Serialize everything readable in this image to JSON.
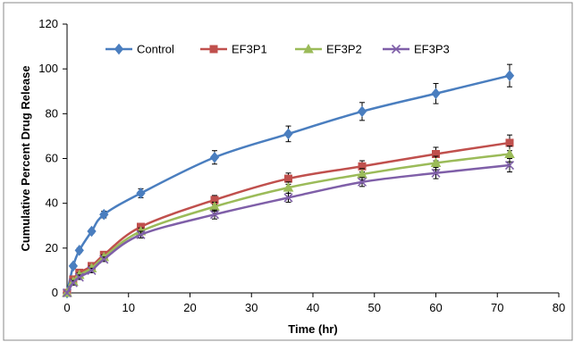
{
  "chart_data": {
    "type": "line",
    "title": "",
    "xlabel": "Time (hr)",
    "ylabel": "Cumulative Percent Drug Release",
    "xlim": [
      0,
      80
    ],
    "ylim": [
      0,
      120
    ],
    "xticks": [
      0,
      10,
      20,
      30,
      40,
      50,
      60,
      70,
      80
    ],
    "yticks": [
      0,
      20,
      40,
      60,
      80,
      100,
      120
    ],
    "grid": false,
    "legend": "top-left",
    "x": [
      0,
      1,
      2,
      4,
      6,
      12,
      24,
      36,
      48,
      60,
      72
    ],
    "series": [
      {
        "name": "Control",
        "color": "#4a7ebf",
        "marker": "diamond",
        "values": [
          0,
          12,
          19,
          27.5,
          35,
          44.5,
          60.5,
          71,
          81,
          89,
          97
        ],
        "errors": [
          0,
          1,
          1,
          1,
          1.5,
          2,
          3,
          3.5,
          4,
          4.5,
          5
        ]
      },
      {
        "name": "EF3P1",
        "color": "#c0504d",
        "marker": "square",
        "values": [
          0,
          6,
          9,
          12,
          17,
          29.5,
          41.5,
          51,
          56.5,
          62,
          67
        ],
        "errors": [
          0,
          1,
          1,
          1,
          1,
          1.5,
          2,
          2.5,
          2.5,
          3,
          3.5
        ]
      },
      {
        "name": "EF3P2",
        "color": "#9bbb59",
        "marker": "triangle",
        "values": [
          0,
          5,
          8,
          11,
          16,
          27.5,
          38.5,
          47,
          53,
          58,
          62
        ],
        "errors": [
          0,
          1,
          1,
          1,
          1,
          1.5,
          2,
          2.5,
          2.5,
          3,
          3.5
        ]
      },
      {
        "name": "EF3P3",
        "color": "#7f5fa8",
        "marker": "x",
        "values": [
          0,
          4.5,
          7,
          10,
          15,
          26,
          35,
          42.5,
          49.5,
          53.5,
          57
        ],
        "errors": [
          0,
          1,
          1,
          1,
          1,
          1.5,
          2,
          2,
          2,
          2.5,
          3
        ]
      }
    ]
  }
}
